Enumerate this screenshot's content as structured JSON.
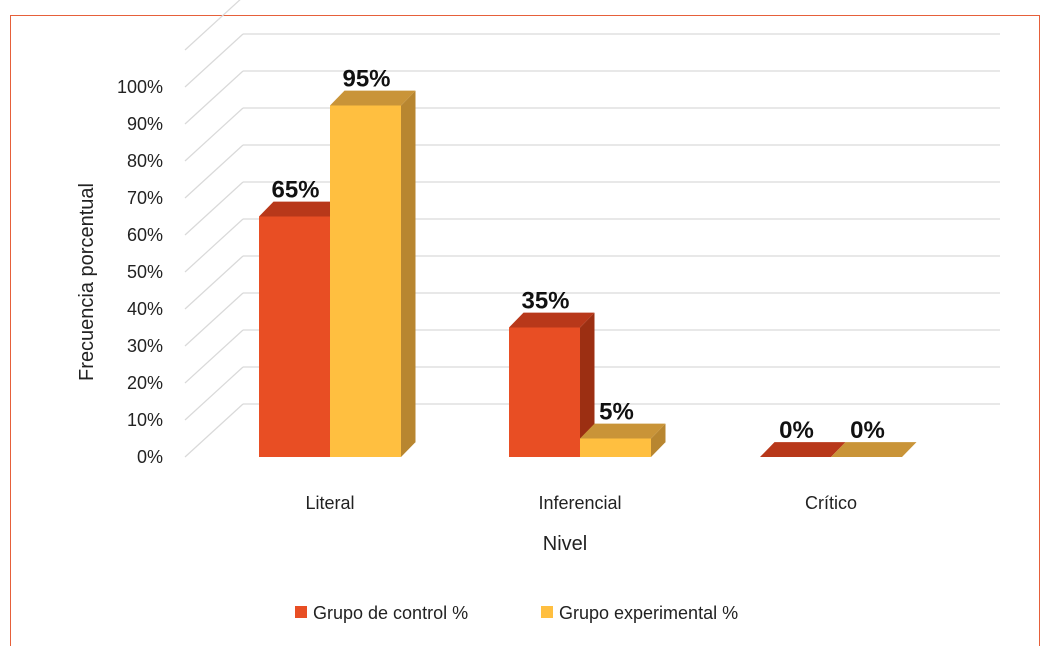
{
  "chart_data": {
    "type": "bar",
    "title": "",
    "xlabel": "Nivel",
    "ylabel": "Frecuencia porcentual",
    "ylim": [
      0,
      100
    ],
    "y_ticks": [
      "0%",
      "10%",
      "20%",
      "30%",
      "40%",
      "50%",
      "60%",
      "70%",
      "80%",
      "90%",
      "100%"
    ],
    "categories": [
      "Literal",
      "Inferencial",
      "Crítico"
    ],
    "series": [
      {
        "name": "Grupo de control %",
        "values": [
          65,
          35,
          0
        ],
        "labels": [
          "65%",
          "35%",
          "0%"
        ],
        "color": "#e84e24",
        "side_color": "#9c2f12",
        "top_color": "#b8381a"
      },
      {
        "name": "Grupo experimental %",
        "values": [
          95,
          5,
          0
        ],
        "labels": [
          "95%",
          "5%",
          "0%"
        ],
        "color": "#ffbf40",
        "side_color": "#b88630",
        "top_color": "#c99438"
      }
    ],
    "grid": true,
    "legend": "bottom",
    "style": "3d-column",
    "frame_color": "#e6603a"
  }
}
